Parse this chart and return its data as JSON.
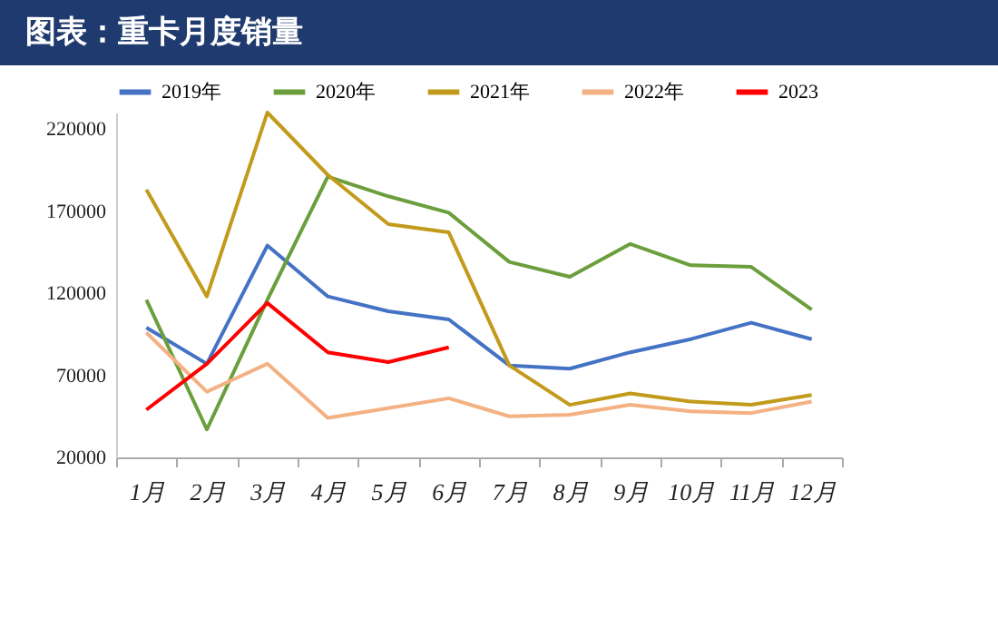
{
  "chart_data": {
    "type": "line",
    "title": "图表：重卡月度销量",
    "categories": [
      "1月",
      "2月",
      "3月",
      "4月",
      "5月",
      "6月",
      "7月",
      "8月",
      "9月",
      "10月",
      "11月",
      "12月"
    ],
    "series": [
      {
        "name": "2019年",
        "color": "#4472c4",
        "values": [
          99000,
          77000,
          149000,
          118000,
          109000,
          104000,
          76000,
          74000,
          84000,
          92000,
          102000,
          92000
        ]
      },
      {
        "name": "2020年",
        "color": "#6b9e3c",
        "values": [
          116000,
          37000,
          116000,
          191000,
          179000,
          169000,
          139000,
          130000,
          150000,
          137000,
          136000,
          110000
        ]
      },
      {
        "name": "2021年",
        "color": "#c29b1c",
        "values": [
          183000,
          118000,
          230000,
          192000,
          162000,
          157000,
          76000,
          52000,
          59000,
          54000,
          52000,
          58000
        ]
      },
      {
        "name": "2022年",
        "color": "#f4b183",
        "values": [
          96000,
          60000,
          77000,
          44000,
          50000,
          56000,
          45000,
          46000,
          52000,
          48000,
          47000,
          54000
        ]
      },
      {
        "name": "2023",
        "color": "#ff0000",
        "values": [
          49000,
          77000,
          114000,
          84000,
          78000,
          87000,
          null,
          null,
          null,
          null,
          null,
          null
        ]
      }
    ],
    "ylim": [
      20000,
      230000
    ],
    "yticks": [
      20000,
      70000,
      120000,
      170000,
      220000
    ],
    "grid": false,
    "legend": "top",
    "marker": "none",
    "line_style": "solid"
  }
}
